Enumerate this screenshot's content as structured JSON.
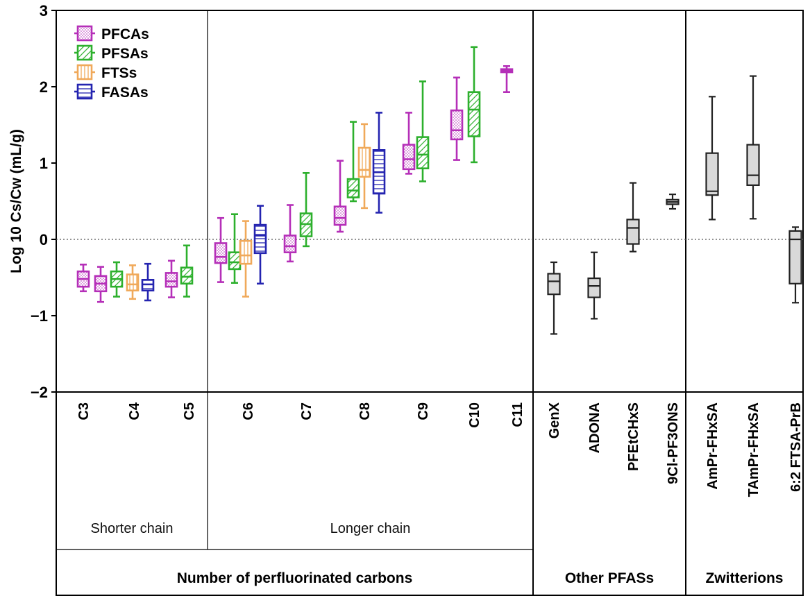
{
  "chart_data": {
    "type": "box",
    "ylabel": "Log 10 Cs/Cw (mL/g)",
    "ylim": [
      -2,
      3
    ],
    "y_ticks": [
      "−2",
      "−1",
      "0",
      "1",
      "2",
      "3"
    ],
    "y_tick_values": [
      -2,
      -1,
      0,
      1,
      2,
      3
    ],
    "reference_line": {
      "y": 0,
      "style": "dotted"
    },
    "legend": {
      "placement": "top-left",
      "entries": [
        {
          "name": "PFCAs",
          "color": "#b52fb8",
          "pattern": "dots"
        },
        {
          "name": "PFSAs",
          "color": "#2db02d",
          "pattern": "diagonal"
        },
        {
          "name": "FTSs",
          "color": "#f0a95a",
          "pattern": "vertical"
        },
        {
          "name": "FASAs",
          "color": "#2424b0",
          "pattern": "horizontal"
        }
      ]
    },
    "series": [
      {
        "name": "PFCAs",
        "color": "#b52fb8",
        "boxes": [
          {
            "category": "C3",
            "min": -0.68,
            "q1": -0.62,
            "median": -0.52,
            "q3": -0.42,
            "max": -0.33
          },
          {
            "category": "C4",
            "min": -0.82,
            "q1": -0.68,
            "median": -0.58,
            "q3": -0.48,
            "max": -0.36
          },
          {
            "category": "C5",
            "min": -0.76,
            "q1": -0.62,
            "median": -0.55,
            "q3": -0.44,
            "max": -0.28
          },
          {
            "category": "C6",
            "min": -0.56,
            "q1": -0.31,
            "median": -0.23,
            "q3": -0.05,
            "max": 0.28
          },
          {
            "category": "C7",
            "min": -0.29,
            "q1": -0.17,
            "median": -0.09,
            "q3": 0.05,
            "max": 0.45
          },
          {
            "category": "C8",
            "min": 0.1,
            "q1": 0.19,
            "median": 0.28,
            "q3": 0.43,
            "max": 1.03
          },
          {
            "category": "C9",
            "min": 0.86,
            "q1": 0.92,
            "median": 1.05,
            "q3": 1.24,
            "max": 1.66
          },
          {
            "category": "C10",
            "min": 1.04,
            "q1": 1.31,
            "median": 1.43,
            "q3": 1.69,
            "max": 2.12
          },
          {
            "category": "C11",
            "min": 1.93,
            "q1": 2.19,
            "median": 2.21,
            "q3": 2.23,
            "max": 2.27
          }
        ]
      },
      {
        "name": "PFSAs",
        "color": "#2db02d",
        "boxes": [
          {
            "category": "C4",
            "min": -0.75,
            "q1": -0.62,
            "median": -0.52,
            "q3": -0.42,
            "max": -0.3
          },
          {
            "category": "C5",
            "min": -0.75,
            "q1": -0.58,
            "median": -0.49,
            "q3": -0.37,
            "max": -0.08
          },
          {
            "category": "C6",
            "min": -0.57,
            "q1": -0.39,
            "median": -0.3,
            "q3": -0.17,
            "max": 0.33
          },
          {
            "category": "C7",
            "min": -0.09,
            "q1": 0.04,
            "median": 0.2,
            "q3": 0.34,
            "max": 0.87
          },
          {
            "category": "C8",
            "min": 0.5,
            "q1": 0.55,
            "median": 0.64,
            "q3": 0.79,
            "max": 1.54
          },
          {
            "category": "C9",
            "min": 0.76,
            "q1": 0.93,
            "median": 1.11,
            "q3": 1.34,
            "max": 2.07
          },
          {
            "category": "C10",
            "min": 1.01,
            "q1": 1.35,
            "median": 1.7,
            "q3": 1.93,
            "max": 2.52
          }
        ]
      },
      {
        "name": "FTSs",
        "color": "#f0a95a",
        "boxes": [
          {
            "category": "C4",
            "min": -0.78,
            "q1": -0.67,
            "median": -0.59,
            "q3": -0.46,
            "max": -0.34
          },
          {
            "category": "C6",
            "min": -0.75,
            "q1": -0.32,
            "median": -0.21,
            "q3": -0.02,
            "max": 0.24
          },
          {
            "category": "C8",
            "min": 0.41,
            "q1": 0.82,
            "median": 0.91,
            "q3": 1.2,
            "max": 1.51
          }
        ]
      },
      {
        "name": "FASAs",
        "color": "#2424b0",
        "boxes": [
          {
            "category": "C4",
            "min": -0.8,
            "q1": -0.67,
            "median": -0.59,
            "q3": -0.53,
            "max": -0.32
          },
          {
            "category": "C6",
            "min": -0.58,
            "q1": -0.18,
            "median": 0.05,
            "q3": 0.19,
            "max": 0.44
          },
          {
            "category": "C8",
            "min": 0.35,
            "q1": 0.6,
            "median": 0.88,
            "q3": 1.17,
            "max": 1.66
          }
        ]
      },
      {
        "name": "",
        "color": "#222222",
        "boxes": [
          {
            "category": "GenX",
            "min": -1.24,
            "q1": -0.72,
            "median": -0.55,
            "q3": -0.45,
            "max": -0.3
          },
          {
            "category": "ADONA",
            "min": -1.04,
            "q1": -0.76,
            "median": -0.61,
            "q3": -0.51,
            "max": -0.17
          },
          {
            "category": "PFEtCHxS",
            "min": -0.16,
            "q1": -0.06,
            "median": 0.15,
            "q3": 0.26,
            "max": 0.74
          },
          {
            "category": "9Cl-PF3ONS",
            "min": 0.4,
            "q1": 0.46,
            "median": 0.49,
            "q3": 0.52,
            "max": 0.59
          },
          {
            "category": "AmPr-FHxSA",
            "min": 0.26,
            "q1": 0.58,
            "median": 0.63,
            "q3": 1.13,
            "max": 1.87
          },
          {
            "category": "TAmPr-FHxSA",
            "min": 0.27,
            "q1": 0.71,
            "median": 0.84,
            "q3": 1.24,
            "max": 2.14
          },
          {
            "category": "6:2 FTSA-PrB",
            "min": -0.83,
            "q1": -0.58,
            "median": 0.0,
            "q3": 0.11,
            "max": 0.16
          }
        ]
      }
    ],
    "categories": [
      "C3",
      "C4",
      "C5",
      "C6",
      "C7",
      "C8",
      "C9",
      "C10",
      "C11",
      "GenX",
      "ADONA",
      "PFEtCHxS",
      "9Cl-PF3ONS",
      "AmPr-FHxSA",
      "TAmPr-FHxSA",
      "6:2 FTSA-PrB"
    ],
    "group_labels": {
      "shorter": "Shorter chain",
      "longer": "Longer chain"
    },
    "panel_labels": {
      "carbons": "Number of perfluorinated carbons",
      "other": "Other PFASs",
      "zwitterions": "Zwitterions"
    }
  }
}
